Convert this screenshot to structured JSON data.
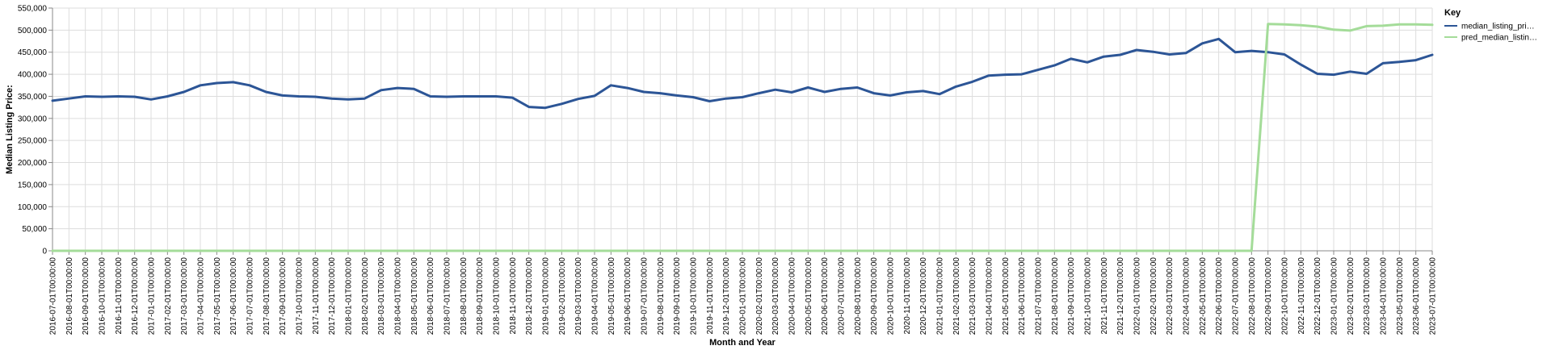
{
  "chart_data": {
    "type": "line",
    "xlabel": "Month and Year",
    "ylabel": "Median Listing Price:",
    "ylim": [
      0,
      550000
    ],
    "yticks": [
      0,
      50000,
      100000,
      150000,
      200000,
      250000,
      300000,
      350000,
      400000,
      450000,
      500000,
      550000
    ],
    "ytick_labels": [
      "0",
      "50,000",
      "100,000",
      "150,000",
      "200,000",
      "250,000",
      "300,000",
      "350,000",
      "400,000",
      "450,000",
      "500,000",
      "550,000"
    ],
    "grid": true,
    "legend": {
      "title": "Key",
      "placement": "right",
      "entries": [
        "median_listing_pri…",
        "pred_median_listin…"
      ]
    },
    "categories": [
      "2016-07-01T00:00:00",
      "2016-08-01T00:00:00",
      "2016-09-01T00:00:00",
      "2016-10-01T00:00:00",
      "2016-11-01T00:00:00",
      "2016-12-01T00:00:00",
      "2017-01-01T00:00:00",
      "2017-02-01T00:00:00",
      "2017-03-01T00:00:00",
      "2017-04-01T00:00:00",
      "2017-05-01T00:00:00",
      "2017-06-01T00:00:00",
      "2017-07-01T00:00:00",
      "2017-08-01T00:00:00",
      "2017-09-01T00:00:00",
      "2017-10-01T00:00:00",
      "2017-11-01T00:00:00",
      "2017-12-01T00:00:00",
      "2018-01-01T00:00:00",
      "2018-02-01T00:00:00",
      "2018-03-01T00:00:00",
      "2018-04-01T00:00:00",
      "2018-05-01T00:00:00",
      "2018-06-01T00:00:00",
      "2018-07-01T00:00:00",
      "2018-08-01T00:00:00",
      "2018-09-01T00:00:00",
      "2018-10-01T00:00:00",
      "2018-11-01T00:00:00",
      "2018-12-01T00:00:00",
      "2019-01-01T00:00:00",
      "2019-02-01T00:00:00",
      "2019-03-01T00:00:00",
      "2019-04-01T00:00:00",
      "2019-05-01T00:00:00",
      "2019-06-01T00:00:00",
      "2019-07-01T00:00:00",
      "2019-08-01T00:00:00",
      "2019-09-01T00:00:00",
      "2019-10-01T00:00:00",
      "2019-11-01T00:00:00",
      "2019-12-01T00:00:00",
      "2020-01-01T00:00:00",
      "2020-02-01T00:00:00",
      "2020-03-01T00:00:00",
      "2020-04-01T00:00:00",
      "2020-05-01T00:00:00",
      "2020-06-01T00:00:00",
      "2020-07-01T00:00:00",
      "2020-08-01T00:00:00",
      "2020-09-01T00:00:00",
      "2020-10-01T00:00:00",
      "2020-11-01T00:00:00",
      "2020-12-01T00:00:00",
      "2021-01-01T00:00:00",
      "2021-02-01T00:00:00",
      "2021-03-01T00:00:00",
      "2021-04-01T00:00:00",
      "2021-05-01T00:00:00",
      "2021-06-01T00:00:00",
      "2021-07-01T00:00:00",
      "2021-08-01T00:00:00",
      "2021-09-01T00:00:00",
      "2021-10-01T00:00:00",
      "2021-11-01T00:00:00",
      "2021-12-01T00:00:00",
      "2022-01-01T00:00:00",
      "2022-02-01T00:00:00",
      "2022-03-01T00:00:00",
      "2022-04-01T00:00:00",
      "2022-05-01T00:00:00",
      "2022-06-01T00:00:00",
      "2022-07-01T00:00:00",
      "2022-08-01T00:00:00",
      "2022-09-01T00:00:00",
      "2022-10-01T00:00:00",
      "2022-11-01T00:00:00",
      "2022-12-01T00:00:00",
      "2023-01-01T00:00:00",
      "2023-02-01T00:00:00",
      "2023-03-01T00:00:00",
      "2023-04-01T00:00:00",
      "2023-05-01T00:00:00",
      "2023-06-01T00:00:00",
      "2023-07-01T00:00:00"
    ],
    "series": [
      {
        "name": "median_listing_pri…",
        "color": "#2c5596",
        "values": [
          340000,
          345000,
          350000,
          349000,
          350000,
          349000,
          343000,
          350000,
          360000,
          375000,
          380000,
          382000,
          375000,
          360000,
          352000,
          350000,
          349000,
          345000,
          343000,
          345000,
          364000,
          369000,
          367000,
          350000,
          349000,
          350000,
          350000,
          350000,
          347000,
          326000,
          324000,
          333000,
          344000,
          351000,
          375000,
          369000,
          360000,
          357000,
          352000,
          348000,
          339000,
          345000,
          348000,
          357000,
          365000,
          359000,
          370000,
          360000,
          367000,
          370000,
          357000,
          352000,
          359000,
          362000,
          355000,
          372000,
          383000,
          397000,
          399000,
          400000,
          410000,
          420000,
          435000,
          427000,
          440000,
          444000,
          455000,
          451000,
          445000,
          448000,
          470000,
          480000,
          450000,
          453000,
          450000,
          445000,
          422000,
          401000,
          399000,
          406000,
          401000,
          425000,
          428000,
          432000,
          444000
        ]
      },
      {
        "name": "pred_median_listin…",
        "color": "#a4dc99",
        "values": [
          0,
          0,
          0,
          0,
          0,
          0,
          0,
          0,
          0,
          0,
          0,
          0,
          0,
          0,
          0,
          0,
          0,
          0,
          0,
          0,
          0,
          0,
          0,
          0,
          0,
          0,
          0,
          0,
          0,
          0,
          0,
          0,
          0,
          0,
          0,
          0,
          0,
          0,
          0,
          0,
          0,
          0,
          0,
          0,
          0,
          0,
          0,
          0,
          0,
          0,
          0,
          0,
          0,
          0,
          0,
          0,
          0,
          0,
          0,
          0,
          0,
          0,
          0,
          0,
          0,
          0,
          0,
          0,
          0,
          0,
          0,
          0,
          0,
          0,
          514000,
          513000,
          511000,
          508000,
          501000,
          499000,
          509000,
          510000,
          513000,
          513000,
          512000
        ]
      }
    ]
  }
}
